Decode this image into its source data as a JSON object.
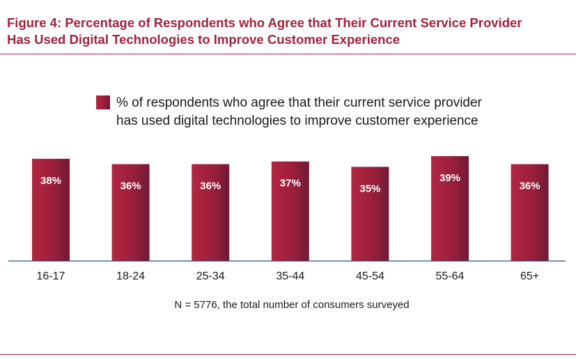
{
  "figure": {
    "title_line1": "Figure 4: Percentage of Respondents who Agree that Their Current Service Provider",
    "title_line2": "Has Used Digital Technologies to Improve Customer Experience"
  },
  "chart_data": {
    "type": "bar",
    "title": "",
    "xlabel": "",
    "ylabel": "",
    "categories": [
      "16-17",
      "18-24",
      "25-34",
      "35-44",
      "45-54",
      "55-64",
      "65+"
    ],
    "series": [
      {
        "name": "% of respondents who agree that their current service provider has used digital technologies to improve customer experience",
        "legend_lines": [
          "% of respondents who agree that their current service provider",
          "has used digital technologies to improve customer experience"
        ],
        "values": [
          38,
          36,
          36,
          37,
          35,
          39,
          36
        ],
        "labels": [
          "38%",
          "36%",
          "36%",
          "37%",
          "35%",
          "39%",
          "36%"
        ],
        "color": "#9c1f3b"
      }
    ],
    "ylim": [
      0,
      39
    ],
    "grid": false,
    "legend_position": "top",
    "note": "N = 5776, the total number of consumers surveyed",
    "colors": {
      "bar_light": "#b02541",
      "bar_dark": "#7a1a35",
      "title": "#a3223e",
      "axis": "#2a4a8a"
    }
  }
}
